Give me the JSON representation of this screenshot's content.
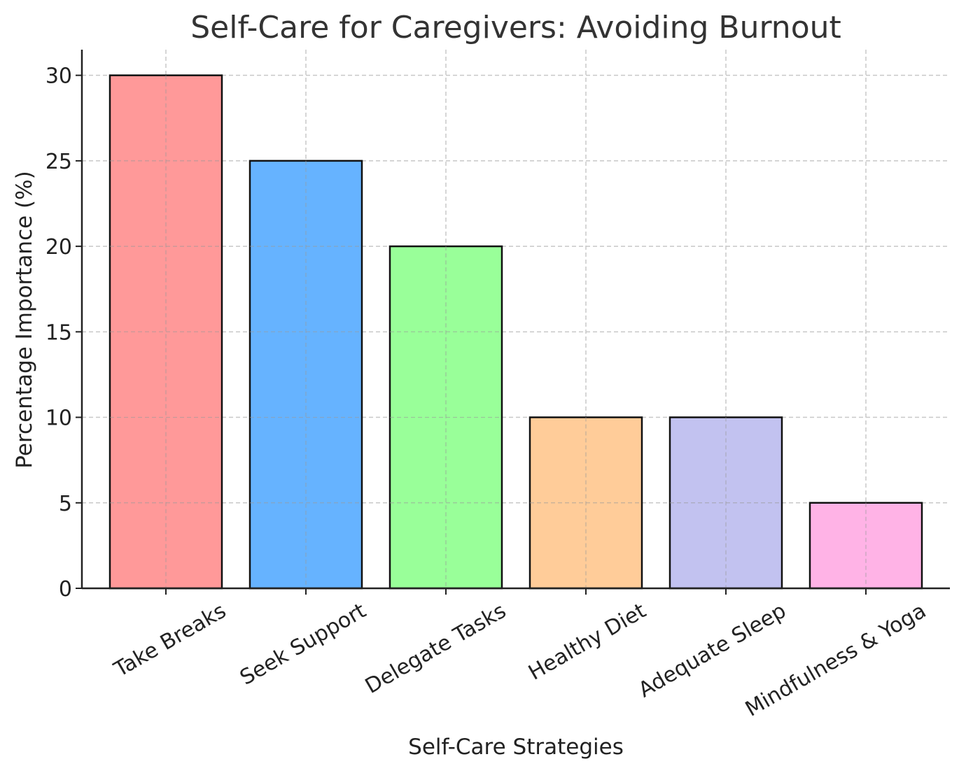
{
  "chart_data": {
    "type": "bar",
    "title": "Self-Care for Caregivers: Avoiding Burnout",
    "xlabel": "Self-Care Strategies",
    "ylabel": "Percentage Importance (%)",
    "categories": [
      "Take Breaks",
      "Seek Support",
      "Delegate Tasks",
      "Healthy Diet",
      "Adequate Sleep",
      "Mindfulness & Yoga"
    ],
    "values": [
      30,
      25,
      20,
      10,
      10,
      5
    ],
    "colors": [
      "#ff9999",
      "#66b3ff",
      "#99ff99",
      "#ffcc99",
      "#c2c2f0",
      "#ffb3e6"
    ],
    "ylim": [
      0,
      31.5
    ],
    "yticks": [
      0,
      5,
      10,
      15,
      20,
      25,
      30
    ],
    "grid": true,
    "legend": "none"
  }
}
